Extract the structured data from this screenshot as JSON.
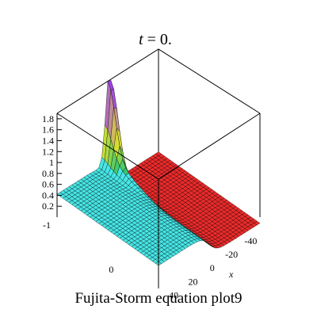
{
  "chart_data": {
    "type": "surface3d",
    "title": {
      "prefix": "t",
      "suffix": " = 0."
    },
    "caption": "Fujita-Storm equation plot9",
    "xlabel": "x",
    "ylabel": "",
    "zlabel": "",
    "z_ticks": [
      "0.2",
      "0.4",
      "0.6",
      "0.8",
      "1",
      "1.2",
      "1.4",
      "1.6",
      "1.8"
    ],
    "y_ticks": [
      "-1",
      "0"
    ],
    "x_ticks": [
      "-40",
      "-20",
      "0",
      "20",
      "40"
    ],
    "zlim": [
      0,
      1.9
    ],
    "colors": {
      "left_plateau": "#46e6e6",
      "right_plateau": "#ee2a2a",
      "ridge_low": "#30c870",
      "ridge_mid": "#e0e030",
      "ridge_high": "#a040f0",
      "mesh": "#000000"
    }
  }
}
